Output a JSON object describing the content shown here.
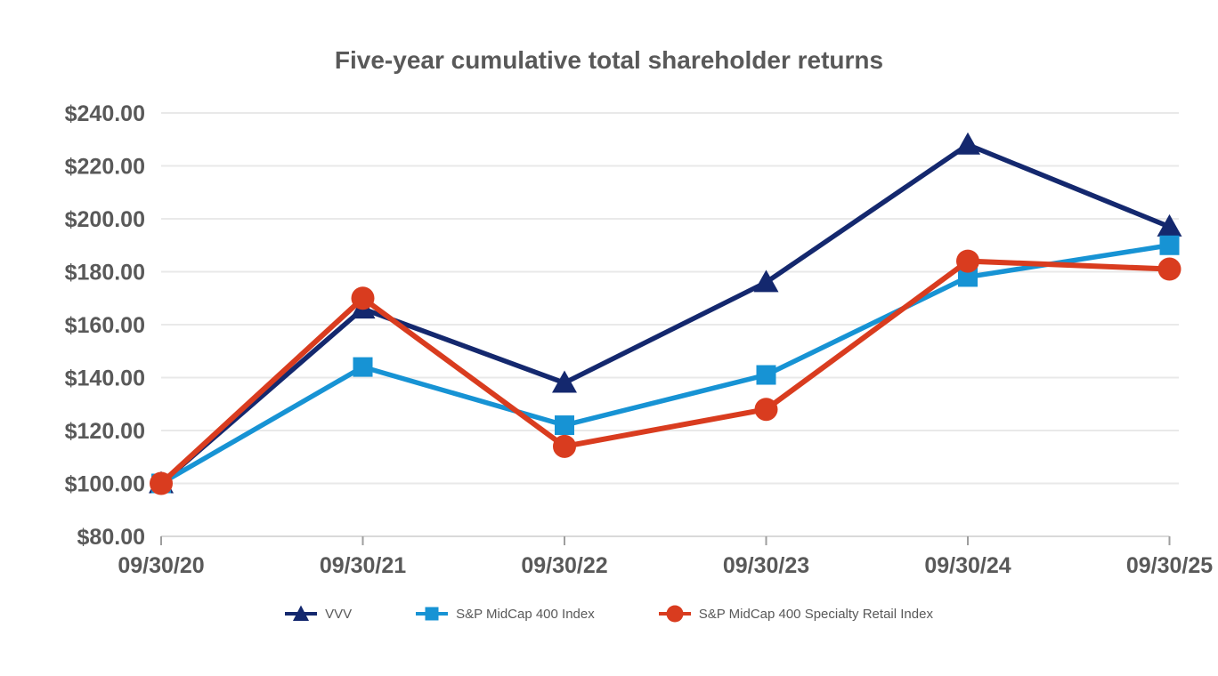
{
  "chart_data": {
    "type": "line",
    "title": "Five-year cumulative total shareholder returns",
    "categories": [
      "09/30/20",
      "09/30/21",
      "09/30/22",
      "09/30/23",
      "09/30/24",
      "09/30/25"
    ],
    "series": [
      {
        "name": "VVV",
        "marker": "triangle",
        "color": "#14286e",
        "values": [
          100.0,
          166,
          138,
          176,
          228,
          197
        ]
      },
      {
        "name": "S&P MidCap 400 Index",
        "marker": "square",
        "color": "#1793d4",
        "values": [
          100.0,
          144,
          122,
          141,
          178,
          190
        ]
      },
      {
        "name": "S&P MidCap 400 Specialty Retail Index",
        "marker": "circle",
        "color": "#d93c1f",
        "values": [
          100.0,
          170,
          114,
          128,
          184,
          181
        ]
      }
    ],
    "y_axis": {
      "min": 80,
      "max": 240,
      "step": 20,
      "tick_labels": [
        "$80.00",
        "$100.00",
        "$120.00",
        "$140.00",
        "$160.00",
        "$180.00",
        "$200.00",
        "$220.00",
        "$240.00"
      ]
    },
    "x_axis": {
      "tick_labels": [
        "09/30/20",
        "09/30/21",
        "09/30/22",
        "09/30/23",
        "09/30/24",
        "09/30/25"
      ]
    },
    "legend_position": "bottom",
    "grid": "horizontal",
    "ylim": [
      80,
      240
    ],
    "colors": {
      "title": "#595959",
      "axis_label": "#595959",
      "gridline": "#e9e9e9",
      "axis_line": "#d9d9d9",
      "tick_mark": "#9e9e9e",
      "background": "#ffffff"
    }
  }
}
